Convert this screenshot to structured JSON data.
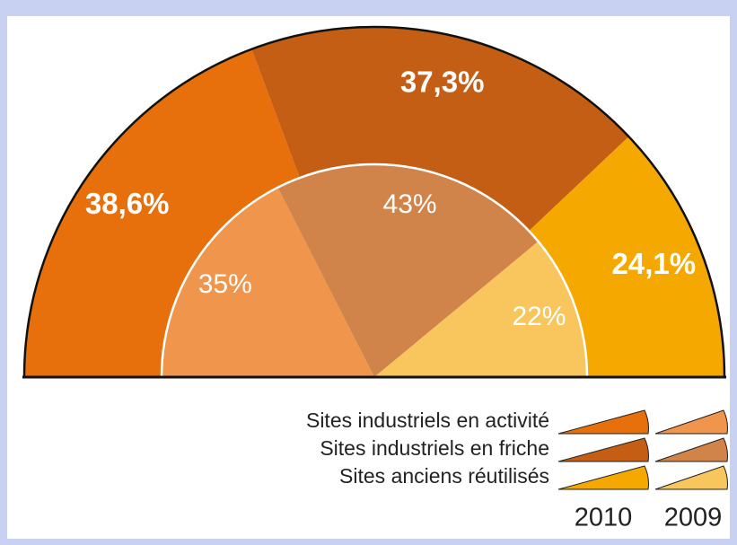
{
  "chart_data": {
    "type": "semi-donut",
    "categories": [
      "Sites industriels en activité",
      "Sites industriels en friche",
      "Sites anciens réutilisés"
    ],
    "series": [
      {
        "name": "2010",
        "values": [
          38.6,
          37.3,
          24.1
        ],
        "value_labels": [
          "38,6%",
          "37,3%",
          "24,1%"
        ],
        "colors": [
          "#e8700c",
          "#c55e15",
          "#f5a900"
        ]
      },
      {
        "name": "2009",
        "values": [
          35,
          43,
          22
        ],
        "value_labels": [
          "35%",
          "43%",
          "22%"
        ],
        "colors": [
          "#f0954c",
          "#d0844a",
          "#f8c65c"
        ]
      }
    ]
  }
}
